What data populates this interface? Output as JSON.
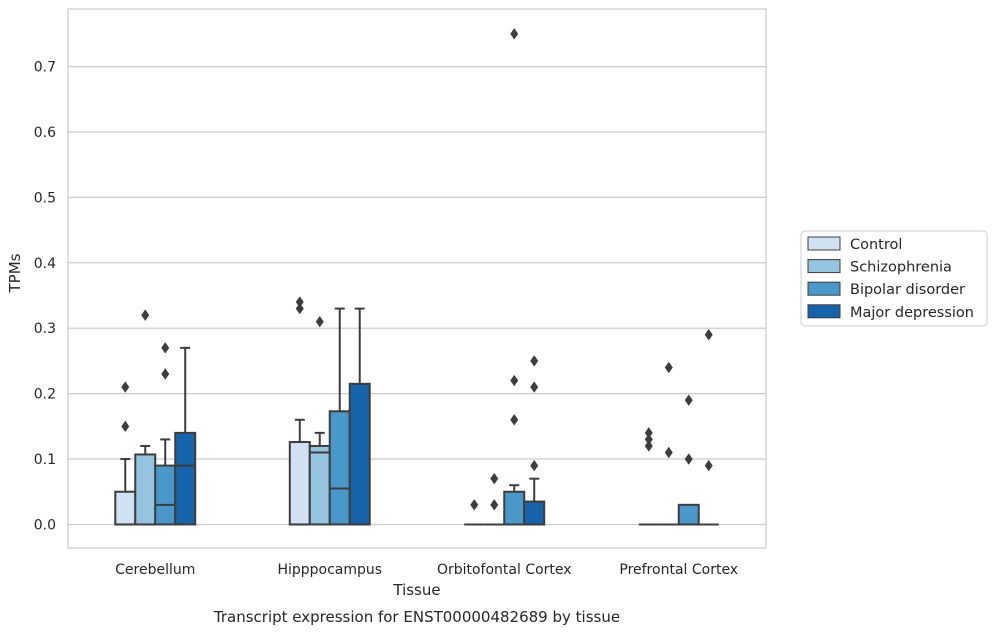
{
  "chart_data": {
    "type": "box",
    "xlabel": "Tissue",
    "ylabel": "TPMs",
    "caption": "Transcript expression for ENST00000482689 by tissue",
    "ylim": [
      -0.036,
      0.788
    ],
    "yticks": [
      0.0,
      0.1,
      0.2,
      0.3,
      0.4,
      0.5,
      0.6,
      0.7
    ],
    "ytick_labels": [
      "0.0",
      "0.1",
      "0.2",
      "0.3",
      "0.4",
      "0.5",
      "0.6",
      "0.7"
    ],
    "grid": "horizontal",
    "legend_position": "right",
    "categories": [
      "Cerebellum",
      "Hipppocampus",
      "Orbitofontal Cortex",
      "Prefrontal Cortex"
    ],
    "series": [
      {
        "name": "Control",
        "color": "#d0e1f2",
        "boxes": [
          {
            "q1": 0.0,
            "median": 0.0,
            "q3": 0.05,
            "whisker_low": 0.0,
            "whisker_high": 0.1,
            "outliers": [
              0.15,
              0.21
            ]
          },
          {
            "q1": 0.0,
            "median": 0.0,
            "q3": 0.126,
            "whisker_low": 0.0,
            "whisker_high": 0.16,
            "outliers": [
              0.33,
              0.34
            ]
          },
          {
            "q1": 0.0,
            "median": 0.0,
            "q3": 0.0,
            "whisker_low": 0.0,
            "whisker_high": 0.0,
            "outliers": [
              0.03
            ]
          },
          {
            "q1": 0.0,
            "median": 0.0,
            "q3": 0.0,
            "whisker_low": 0.0,
            "whisker_high": 0.0,
            "outliers": [
              0.12,
              0.13,
              0.14
            ]
          }
        ]
      },
      {
        "name": "Schizophrenia",
        "color": "#94c4df",
        "boxes": [
          {
            "q1": 0.0,
            "median": 0.0,
            "q3": 0.107,
            "whisker_low": 0.0,
            "whisker_high": 0.12,
            "outliers": [
              0.32
            ]
          },
          {
            "q1": 0.0,
            "median": 0.11,
            "q3": 0.12,
            "whisker_low": 0.0,
            "whisker_high": 0.14,
            "outliers": [
              0.31
            ]
          },
          {
            "q1": 0.0,
            "median": 0.0,
            "q3": 0.0,
            "whisker_low": 0.0,
            "whisker_high": 0.0,
            "outliers": [
              0.03,
              0.07
            ]
          },
          {
            "q1": 0.0,
            "median": 0.0,
            "q3": 0.0,
            "whisker_low": 0.0,
            "whisker_high": 0.0,
            "outliers": [
              0.11,
              0.24
            ]
          }
        ]
      },
      {
        "name": "Bipolar disorder",
        "color": "#4a98c9",
        "boxes": [
          {
            "q1": 0.0,
            "median": 0.03,
            "q3": 0.09,
            "whisker_low": 0.0,
            "whisker_high": 0.13,
            "outliers": [
              0.23,
              0.27
            ]
          },
          {
            "q1": 0.0,
            "median": 0.055,
            "q3": 0.173,
            "whisker_low": 0.0,
            "whisker_high": 0.33,
            "outliers": []
          },
          {
            "q1": 0.0,
            "median": 0.0,
            "q3": 0.05,
            "whisker_low": 0.0,
            "whisker_high": 0.06,
            "outliers": [
              0.16,
              0.22,
              0.75
            ]
          },
          {
            "q1": 0.0,
            "median": 0.0,
            "q3": 0.03,
            "whisker_low": 0.0,
            "whisker_high": 0.03,
            "outliers": [
              0.1,
              0.19
            ]
          }
        ]
      },
      {
        "name": "Major depression",
        "color": "#1764ab",
        "boxes": [
          {
            "q1": 0.0,
            "median": 0.09,
            "q3": 0.14,
            "whisker_low": 0.0,
            "whisker_high": 0.27,
            "outliers": []
          },
          {
            "q1": 0.0,
            "median": 0.0,
            "q3": 0.215,
            "whisker_low": 0.0,
            "whisker_high": 0.33,
            "outliers": []
          },
          {
            "q1": 0.0,
            "median": 0.0,
            "q3": 0.035,
            "whisker_low": 0.0,
            "whisker_high": 0.07,
            "outliers": [
              0.09,
              0.21,
              0.25
            ]
          },
          {
            "q1": 0.0,
            "median": 0.0,
            "q3": 0.0,
            "whisker_low": 0.0,
            "whisker_high": 0.0,
            "outliers": [
              0.09,
              0.29
            ]
          }
        ]
      }
    ]
  }
}
